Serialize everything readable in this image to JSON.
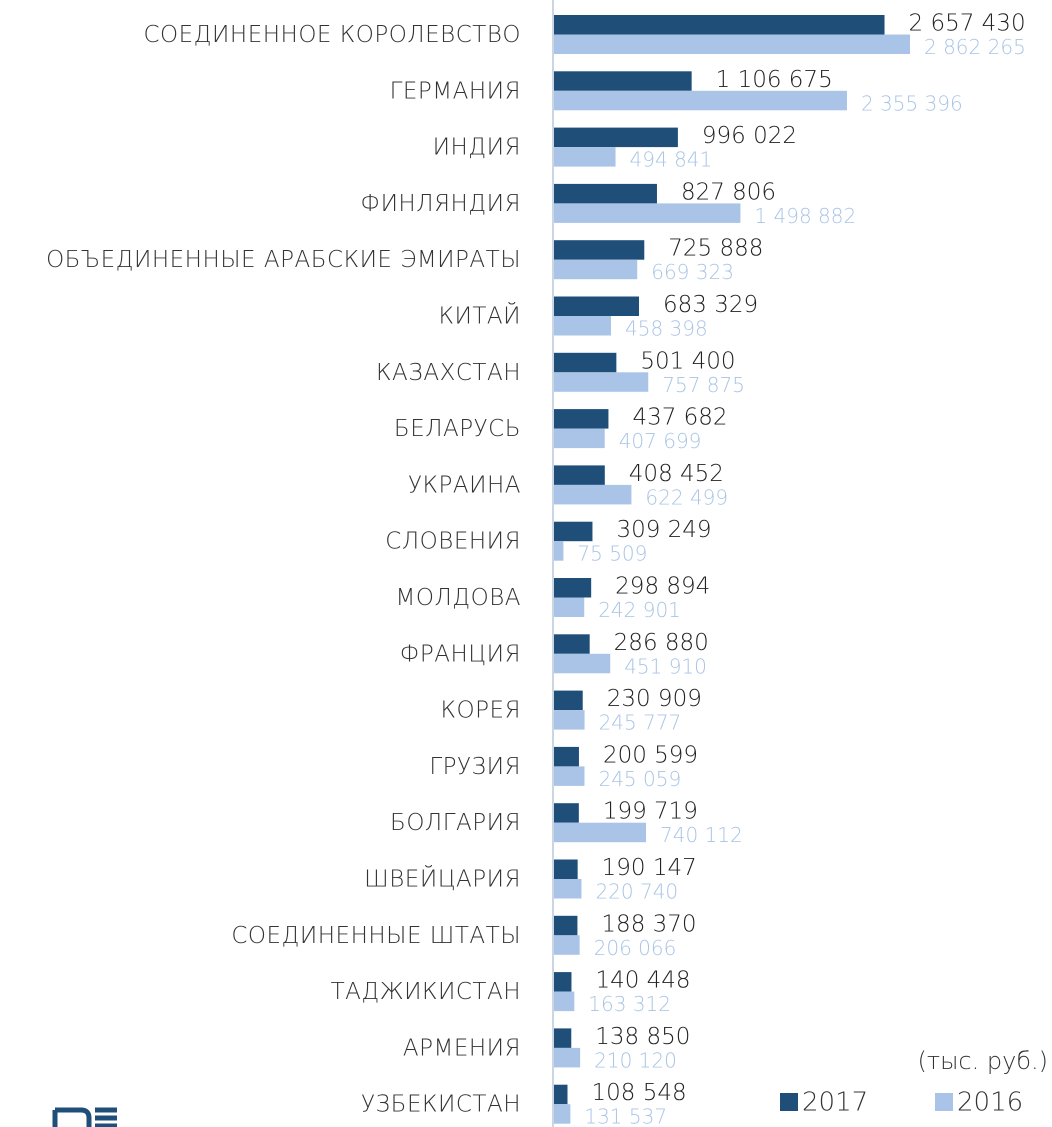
{
  "chart_data": {
    "type": "hbar",
    "orientation": "horizontal",
    "categories": [
      "СОЕДИНЕННОЕ КОРОЛЕВСТВО",
      "ГЕРМАНИЯ",
      "ИНДИЯ",
      "ФИНЛЯНДИЯ",
      "ОБЪЕДИНЕННЫЕ АРАБСКИЕ ЭМИРАТЫ",
      "КИТАЙ",
      "КАЗАХСТАН",
      "БЕЛАРУСЬ",
      "УКРАИНА",
      "СЛОВЕНИЯ",
      "МОЛДОВА",
      "ФРАНЦИЯ",
      "КОРЕЯ",
      "ГРУЗИЯ",
      "БОЛГАРИЯ",
      "ШВЕЙЦАРИЯ",
      "СОЕДИНЕННЫЕ ШТАТЫ",
      "ТАДЖИКИСТАН",
      "АРМЕНИЯ",
      "УЗБЕКИСТАН"
    ],
    "series": [
      {
        "name": "2017",
        "color": "#1f4e79",
        "values": [
          2657430,
          1106675,
          996022,
          827806,
          725888,
          683329,
          501400,
          437682,
          408452,
          309249,
          298894,
          286880,
          230909,
          200599,
          199719,
          190147,
          188370,
          140448,
          138850,
          108548
        ],
        "value_labels": [
          "2 657 430",
          "1 106 675",
          "996 022",
          "827 806",
          "725 888",
          "683 329",
          "501 400",
          "437 682",
          "408 452",
          "309 249",
          "298 894",
          "286 880",
          "230 909",
          "200 599",
          "199 719",
          "190 147",
          "188 370",
          "140 448",
          "138 850",
          "108 548"
        ]
      },
      {
        "name": "2016",
        "color": "#a9c4e6",
        "values": [
          2862265,
          2355396,
          494841,
          1498882,
          669323,
          458398,
          757875,
          407699,
          622499,
          75509,
          242901,
          451910,
          245777,
          245059,
          740112,
          220740,
          206066,
          163312,
          210120,
          131537
        ],
        "value_labels": [
          "2 862 265",
          "2 355 396",
          "494 841",
          "1 498 882",
          "669 323",
          "458 398",
          "757 875",
          "407 699",
          "622 499",
          "75 509",
          "242 901",
          "451 910",
          "245 777",
          "245 059",
          "740 112",
          "220 740",
          "206 066",
          "163 312",
          "210 120",
          "131 537"
        ]
      }
    ],
    "unit_label": "(тыс. руб.)",
    "legend": "bottom-right"
  }
}
